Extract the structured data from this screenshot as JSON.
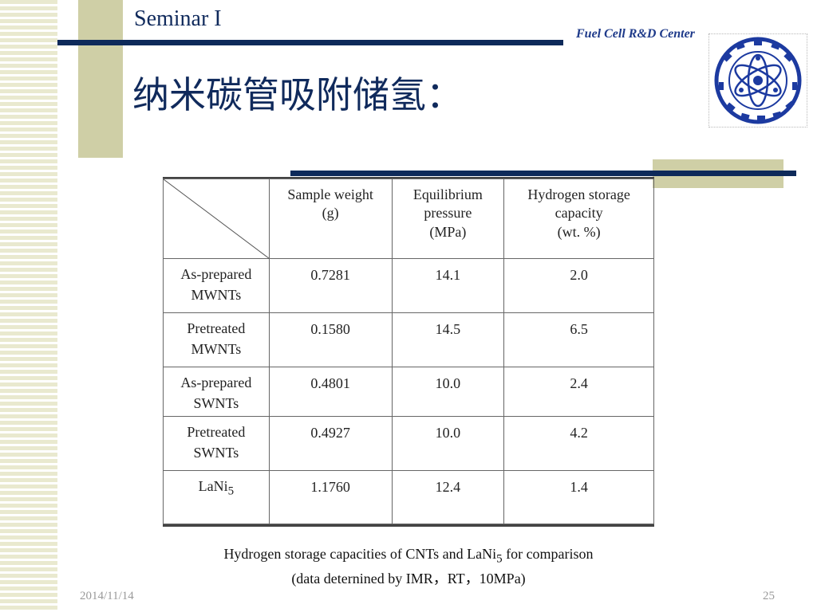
{
  "header": {
    "seminar": "Seminar I",
    "center": "Fuel Cell R&D Center",
    "title": "纳米碳管吸附储氢："
  },
  "table": {
    "headers": [
      [
        "Sample weight",
        "(g)"
      ],
      [
        "Equilibrium",
        "pressure",
        "(MPa)"
      ],
      [
        "Hydrogen storage",
        "capacity",
        "(wt. %)"
      ]
    ],
    "rows": [
      {
        "label_lines": [
          "As-prepared",
          "MWNTs"
        ],
        "weight": "0.7281",
        "pressure": "14.1",
        "capacity": "2.0"
      },
      {
        "label_lines": [
          "Pretreated",
          "MWNTs"
        ],
        "weight": "0.1580",
        "pressure": "14.5",
        "capacity": "6.5"
      },
      {
        "label_lines": [
          "As-prepared",
          "SWNTs"
        ],
        "weight": "0.4801",
        "pressure": "10.0",
        "capacity": "2.4"
      },
      {
        "label_lines": [
          "Pretreated",
          "SWNTs"
        ],
        "weight": "0.4927",
        "pressure": "10.0",
        "capacity": "4.2"
      },
      {
        "label_base": "LaNi",
        "label_sub": "5",
        "weight": "1.1760",
        "pressure": "12.4",
        "capacity": "1.4"
      }
    ]
  },
  "caption": {
    "line1_pre": "Hydrogen storage capacities of CNTs and LaNi",
    "line1_sub": "5",
    "line1_post": " for comparison",
    "line2": "(data deternined by IMR，RT，10MPa)"
  },
  "footer": {
    "date": "2014/11/14",
    "page": "25"
  },
  "colors": {
    "navy": "#0e2a5a",
    "khaki": "#cfcfa6",
    "stripe": "#e9e9cf"
  }
}
